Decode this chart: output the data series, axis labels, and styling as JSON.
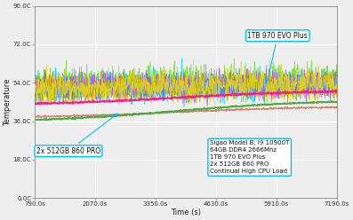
{
  "xlabel": "Time (s)",
  "ylabel": "Temperature",
  "x_start": 790,
  "x_end": 7190,
  "y_min": 0.0,
  "y_max": 90.0,
  "yticks": [
    0.0,
    18.0,
    36.0,
    54.0,
    72.0,
    90.0
  ],
  "xticks": [
    790,
    2070,
    3350,
    4630,
    5910,
    7190
  ],
  "xtick_labels": [
    "790.0s",
    "2070.0s",
    "3350.0s",
    "4630.0s",
    "5910.0s",
    "7190.0s"
  ],
  "ytick_labels": [
    "0.0C",
    "18.0C",
    "36.0C",
    "54.0C",
    "72.0C",
    "90.0C"
  ],
  "background_color": "#eeeeee",
  "grid_color": "#ffffff",
  "annotation_box1_text": "1TB 970 EVO Plus",
  "annotation_box2_text": "2x 512GB 860 PRO",
  "info_box_text": "Sigao Model B, i9 10900T\n64GB DDR4 2666Mhz\n1TB 970 EVO Plus\n2x 512GB 860 PRO\nContinual High CPU Load",
  "annotation_color": "#00bfff",
  "dotted_top_color": "#bbbbbb"
}
